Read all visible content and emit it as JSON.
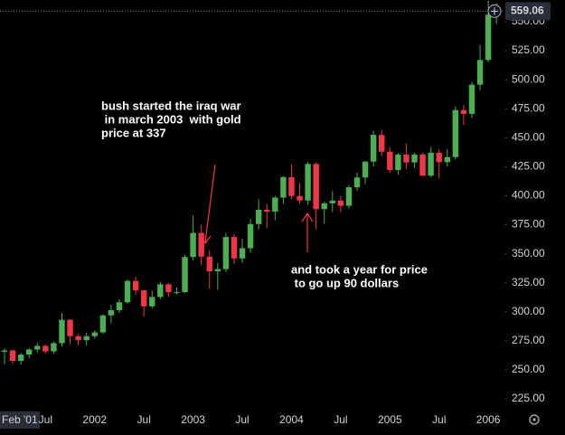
{
  "chart_data": {
    "type": "candlestick",
    "categories": [
      "Feb '01",
      null,
      null,
      null,
      null,
      "Jul",
      null,
      null,
      null,
      null,
      null,
      "2002",
      null,
      null,
      null,
      null,
      null,
      "Jul",
      null,
      null,
      null,
      null,
      null,
      "2003",
      null,
      null,
      null,
      null,
      null,
      "Jul",
      null,
      null,
      null,
      null,
      null,
      "2004",
      null,
      null,
      null,
      null,
      null,
      "Jul",
      null,
      null,
      null,
      null,
      null,
      "2005",
      null,
      null,
      null,
      null,
      null,
      "Jul",
      null,
      null,
      null,
      null,
      null,
      "2006",
      null
    ],
    "open": [
      265.6,
      266.7,
      257.7,
      263.1,
      267.5,
      270.6,
      265.9,
      273,
      293.1,
      279,
      275.5,
      279,
      282.3,
      296.9,
      301.4,
      308.2,
      326.6,
      318.5,
      304.7,
      312.8,
      323.7,
      316.9,
      317,
      347.2,
      368,
      347.5,
      334.9,
      336.8,
      364.5,
      346,
      354.8,
      375.6,
      388,
      386.3,
      398.4,
      416.1,
      399.8,
      395.9,
      427.4,
      388.5,
      393.5,
      395.8,
      391.4,
      407.3,
      415.7,
      429.4,
      452.5,
      438,
      422.2,
      435.5,
      428.7,
      435.6,
      417.3,
      437.1,
      429,
      433.3,
      473.8,
      470.6,
      495.7,
      517,
      556
    ],
    "high": [
      268.5,
      267.5,
      264.5,
      269,
      273,
      272,
      274.5,
      299,
      294,
      281,
      282,
      284,
      298,
      306,
      311,
      328,
      330,
      319,
      318,
      326,
      325,
      321,
      349,
      383,
      375,
      353,
      342,
      368,
      367,
      363,
      380,
      397,
      393,
      400,
      417,
      427,
      411,
      429,
      429,
      395,
      404,
      400,
      409,
      420,
      430,
      456,
      457,
      442,
      437,
      445,
      437,
      437,
      442,
      440,
      440,
      477,
      478,
      498,
      530,
      568,
      566
    ],
    "low": [
      255,
      255,
      254.5,
      260,
      265,
      264,
      264,
      270,
      272,
      271,
      271,
      277,
      281,
      290,
      299,
      307,
      315,
      296,
      303,
      311,
      313,
      315,
      316,
      344,
      340,
      320,
      319,
      334,
      341,
      342,
      351,
      371,
      372,
      379,
      393,
      397,
      393,
      392,
      371,
      376,
      386,
      386,
      389,
      404,
      410,
      425,
      434,
      420,
      418,
      423,
      424,
      417,
      416,
      415,
      425,
      431,
      461,
      467,
      491,
      515,
      548
    ],
    "close": [
      266.7,
      257.7,
      263.1,
      267.5,
      270.6,
      265.9,
      273,
      293.1,
      279,
      275.5,
      279,
      282.3,
      296.9,
      301.4,
      308.2,
      326.6,
      318.5,
      304.7,
      312.8,
      323.7,
      316.9,
      317,
      347.2,
      368,
      347.5,
      334.9,
      336.8,
      364.5,
      346,
      354.8,
      375.6,
      388,
      386.3,
      398.4,
      416.1,
      399.8,
      395.9,
      427.4,
      388.5,
      393.5,
      395.8,
      391.4,
      407.3,
      415.7,
      429.4,
      452.5,
      438,
      422.2,
      435.5,
      428.7,
      435.6,
      417.3,
      437.1,
      429,
      433.3,
      473.8,
      470.6,
      495.7,
      517,
      556,
      559.06
    ],
    "up_color": "#4caf50",
    "down_color": "#f23645",
    "ylim": [
      218,
      568.7
    ],
    "yticks": [
      {
        "value": 225,
        "label": "225.00"
      },
      {
        "value": 250,
        "label": "250.00"
      },
      {
        "value": 275,
        "label": "275.00"
      },
      {
        "value": 300,
        "label": "300.00"
      },
      {
        "value": 325,
        "label": "325.00"
      },
      {
        "value": 350,
        "label": "350.00"
      },
      {
        "value": 375,
        "label": "375.00"
      },
      {
        "value": 400,
        "label": "400.00"
      },
      {
        "value": 425,
        "label": "425.00"
      },
      {
        "value": 450,
        "label": "450.00"
      },
      {
        "value": 475,
        "label": "475.00"
      },
      {
        "value": 500,
        "label": "500.00"
      },
      {
        "value": 525,
        "label": "525.00"
      },
      {
        "value": 550,
        "label": "550.00"
      }
    ],
    "last_price": 559.06,
    "annotations": [
      {
        "lines": [
          "bush started the iraq war",
          " in march 2003  with gold",
          "price at 337"
        ]
      },
      {
        "lines": [
          "and took a year for price",
          " to go up 90 dollars"
        ]
      }
    ]
  }
}
